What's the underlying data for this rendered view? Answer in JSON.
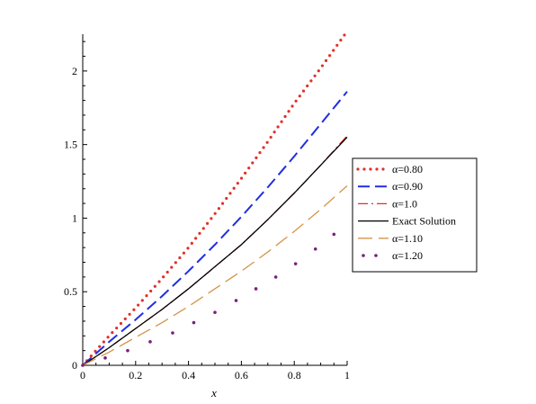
{
  "chart_data": {
    "type": "line",
    "title": "",
    "xlabel": "x",
    "ylabel": "",
    "xlim": [
      0,
      1
    ],
    "ylim": [
      0,
      2.25
    ],
    "xticks": [
      "0",
      "0.2",
      "0.4",
      "0.6",
      "0.8",
      "1"
    ],
    "yticks": [
      "0",
      "0.5",
      "1",
      "1.5",
      "2"
    ],
    "grid": false,
    "legend_position": "right",
    "series": [
      {
        "name": "α=0.80",
        "style": "dotted",
        "color": "#e0302a",
        "x": [
          0,
          0.1,
          0.2,
          0.3,
          0.4,
          0.5,
          0.6,
          0.7,
          0.8,
          0.9,
          1.0
        ],
        "y": [
          0,
          0.2,
          0.39,
          0.59,
          0.8,
          1.03,
          1.27,
          1.52,
          1.78,
          2.02,
          2.27
        ]
      },
      {
        "name": "α=0.90",
        "style": "dashed",
        "color": "#1f2fe0",
        "x": [
          0,
          0.1,
          0.2,
          0.3,
          0.4,
          0.5,
          0.6,
          0.7,
          0.8,
          0.9,
          1.0
        ],
        "y": [
          0,
          0.16,
          0.31,
          0.47,
          0.64,
          0.82,
          1.01,
          1.21,
          1.42,
          1.64,
          1.86
        ]
      },
      {
        "name": "α=1.0",
        "style": "dashdot",
        "color": "#e0302a",
        "x": [
          0,
          0.1,
          0.2,
          0.3,
          0.4,
          0.5,
          0.6,
          0.7,
          0.8,
          0.9,
          1.0
        ],
        "y": [
          0,
          0.12,
          0.25,
          0.38,
          0.52,
          0.67,
          0.82,
          0.99,
          1.17,
          1.36,
          1.56
        ]
      },
      {
        "name": "Exact Solution",
        "style": "solid",
        "color": "#000000",
        "x": [
          0,
          0.1,
          0.2,
          0.3,
          0.4,
          0.5,
          0.6,
          0.7,
          0.8,
          0.9,
          1.0
        ],
        "y": [
          0,
          0.12,
          0.25,
          0.38,
          0.52,
          0.67,
          0.82,
          0.99,
          1.17,
          1.36,
          1.55
        ]
      },
      {
        "name": "α=1.10",
        "style": "longdash",
        "color": "#d4944a",
        "x": [
          0,
          0.1,
          0.2,
          0.3,
          0.4,
          0.5,
          0.6,
          0.7,
          0.8,
          0.9,
          1.0
        ],
        "y": [
          0,
          0.09,
          0.19,
          0.29,
          0.4,
          0.52,
          0.64,
          0.77,
          0.91,
          1.06,
          1.22
        ]
      },
      {
        "name": "α=1.20",
        "style": "sparse-dots",
        "color": "#7a1f7a",
        "x": [
          0,
          0.085,
          0.17,
          0.255,
          0.34,
          0.42,
          0.5,
          0.58,
          0.655,
          0.73,
          0.805,
          0.88,
          0.95
        ],
        "y": [
          0,
          0.05,
          0.1,
          0.16,
          0.22,
          0.29,
          0.36,
          0.44,
          0.52,
          0.6,
          0.69,
          0.79,
          0.89
        ]
      }
    ]
  }
}
